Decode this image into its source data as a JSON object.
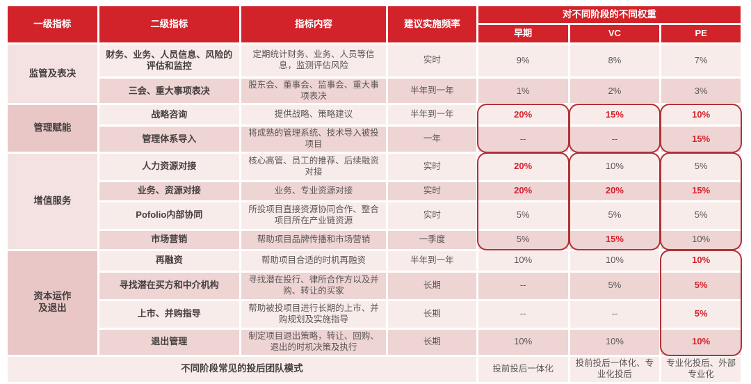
{
  "table": {
    "header": {
      "level1": "一级指标",
      "level2": "二级指标",
      "content": "指标内容",
      "frequency": "建议实施频率",
      "weights_group": "对不同阶段的不同权重",
      "stages": [
        "早期",
        "VC",
        "PE"
      ]
    },
    "rows": [
      {
        "sec": "监管及表决",
        "l2": "财务、业务、人员信息、风险的评估和监控",
        "content": "定期统计财务、业务、人员等信息，监测评估风险",
        "freq": "实时",
        "early": "9%",
        "vc": "8%",
        "pe": "7%",
        "em": []
      },
      {
        "l2": "三会、重大事项表决",
        "content": "股东会、董事会、监事会、重大事项表决",
        "freq": "半年到一年",
        "early": "1%",
        "vc": "2%",
        "pe": "3%",
        "em": []
      },
      {
        "sec": "管理赋能",
        "l2": "战略咨询",
        "content": "提供战略、策略建议",
        "freq": "半年到一年",
        "early": "20%",
        "vc": "15%",
        "pe": "10%",
        "em": [
          "early",
          "vc",
          "pe"
        ]
      },
      {
        "l2": "管理体系导入",
        "content": "将成熟的管理系统、技术导入被投项目",
        "freq": "一年",
        "early": "--",
        "vc": "--",
        "pe": "15%",
        "em": [
          "pe"
        ]
      },
      {
        "sec": "增值服务",
        "l2": "人力资源对接",
        "content": "核心高管、员工的推荐、后续融资对接",
        "freq": "实时",
        "early": "20%",
        "vc": "10%",
        "pe": "5%",
        "em": [
          "early"
        ]
      },
      {
        "l2": "业务、资源对接",
        "content": "业务、专业资源对接",
        "freq": "实时",
        "early": "20%",
        "vc": "20%",
        "pe": "15%",
        "em": [
          "early",
          "vc",
          "pe"
        ]
      },
      {
        "l2": "Pofolio内部协同",
        "content": "所投项目直接资源协同合作、整合项目所在产业链资源",
        "freq": "实时",
        "early": "5%",
        "vc": "5%",
        "pe": "5%",
        "em": []
      },
      {
        "l2": "市场营销",
        "content": "帮助项目品牌传播和市场营销",
        "freq": "一季度",
        "early": "5%",
        "vc": "15%",
        "pe": "10%",
        "em": [
          "vc"
        ]
      },
      {
        "sec": "资本运作\n及退出",
        "l2": "再融资",
        "content": "帮助项目合适的时机再融资",
        "freq": "半年到一年",
        "early": "10%",
        "vc": "10%",
        "pe": "10%",
        "em": [
          "pe"
        ]
      },
      {
        "l2": "寻找潜在买方和中介机构",
        "content": "寻找潜在投行、律所合作方以及并购、转让的买家",
        "freq": "长期",
        "early": "--",
        "vc": "5%",
        "pe": "5%",
        "em": [
          "pe"
        ]
      },
      {
        "l2": "上市、并购指导",
        "content": "帮助被投项目进行长期的上市、并购规划及实施指导",
        "freq": "长期",
        "early": "--",
        "vc": "--",
        "pe": "5%",
        "em": [
          "pe"
        ]
      },
      {
        "l2": "退出管理",
        "content": "制定项目退出策略，转让、回购、退出的时机决策及执行",
        "freq": "长期",
        "early": "10%",
        "vc": "10%",
        "pe": "10%",
        "em": [
          "pe"
        ]
      }
    ],
    "footer": {
      "label": "不同阶段常见的投后团队模式",
      "early": "投前投后一体化",
      "vc": "投前投后一体化、专业化投后",
      "pe": "专业化投后、外部专业化"
    },
    "highlights": [
      {
        "col": "early",
        "from": 2,
        "to": 3
      },
      {
        "col": "vc",
        "from": 2,
        "to": 3
      },
      {
        "col": "pe",
        "from": 2,
        "to": 3
      },
      {
        "col": "early",
        "from": 4,
        "to": 7
      },
      {
        "col": "vc",
        "from": 4,
        "to": 7
      },
      {
        "col": "pe",
        "from": 4,
        "to": 7
      },
      {
        "col": "pe",
        "from": 8,
        "to": 11
      }
    ],
    "colors": {
      "header_red": "#d2232a",
      "row_light": "#f8ecea",
      "row_dark": "#eed4d3",
      "section_light": "#f3e2e1",
      "section_dark": "#e9c7c7",
      "emphasis_red": "#d6212b",
      "outline_red": "#b03137",
      "text_dark": "#453f3f",
      "text_gray": "#595757"
    }
  }
}
